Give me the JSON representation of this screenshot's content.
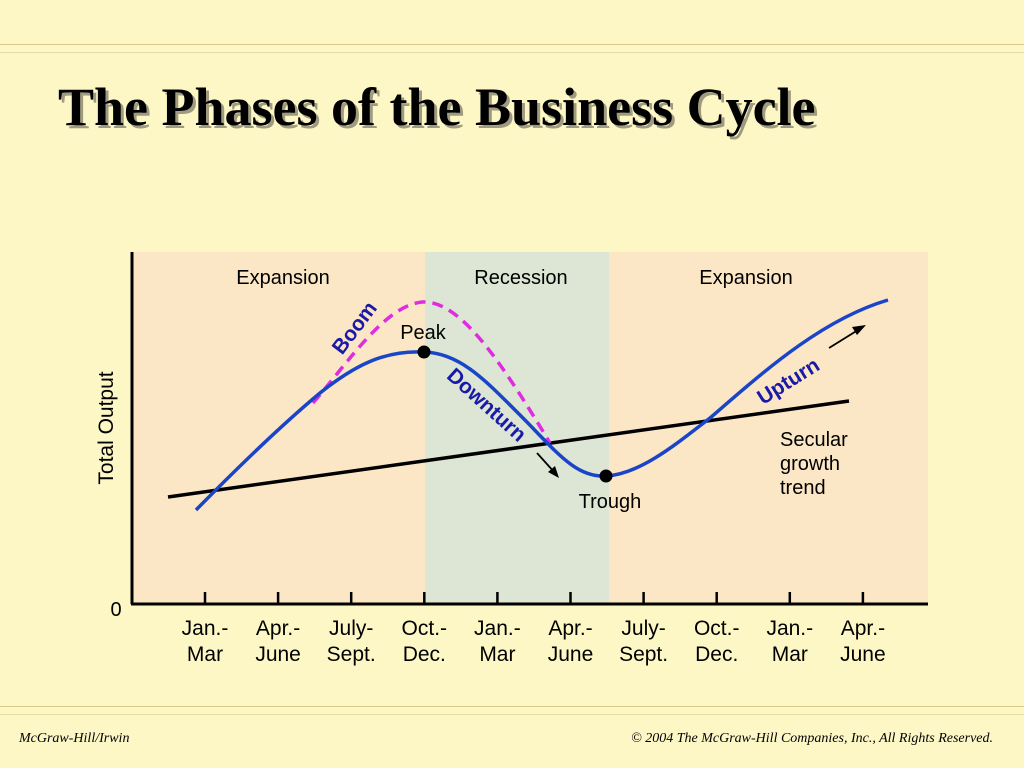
{
  "slide": {
    "title": "The Phases of the Business Cycle",
    "footer_left": "McGraw-Hill/Irwin",
    "footer_right": "© 2004 The McGraw-Hill Companies, Inc., All Rights Reserved."
  },
  "diagram": {
    "phases": [
      "Expansion",
      "Recession",
      "Expansion"
    ],
    "y_axis_label": "Total Output",
    "origin_label": "0",
    "x_ticks": [
      [
        "Jan.-",
        "Mar"
      ],
      [
        "Apr.-",
        "June"
      ],
      [
        "July-",
        "Sept."
      ],
      [
        "Oct.-",
        "Dec."
      ],
      [
        "Jan.-",
        "Mar"
      ],
      [
        "Apr.-",
        "June"
      ],
      [
        "July-",
        "Sept."
      ],
      [
        "Oct.-",
        "Dec."
      ],
      [
        "Jan.-",
        "Mar"
      ],
      [
        "Apr.-",
        "June"
      ]
    ],
    "annotations": {
      "boom": "Boom",
      "peak": "Peak",
      "downturn": "Downturn",
      "trough": "Trough",
      "upturn": "Upturn",
      "trend": [
        "Secular",
        "growth",
        "trend"
      ]
    },
    "colors": {
      "expansion_band": "#fbe7c5",
      "recession_band": "#dde6d4",
      "output_curve": "#1a45c8",
      "boom_curve": "#e02ce0",
      "axis": "#000000",
      "annotation_text": "#1a1aa8"
    }
  }
}
